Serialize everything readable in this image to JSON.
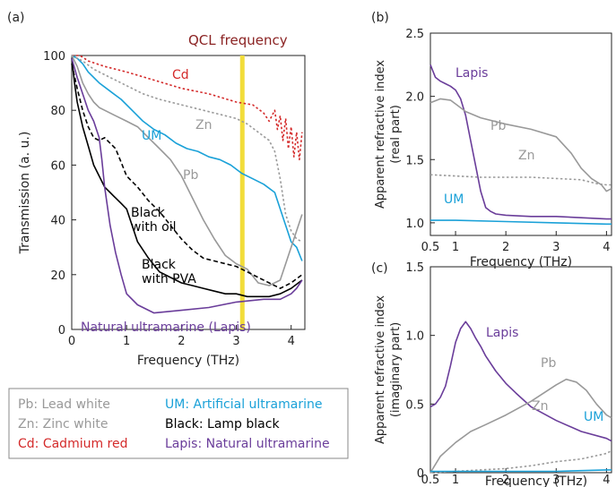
{
  "figure": {
    "panel_labels": [
      "(a)",
      "(b)",
      "(c)"
    ]
  },
  "legend_box": {
    "entries": [
      {
        "key": "Pb",
        "text": "Pb: Lead white",
        "color": "#999999"
      },
      {
        "key": "UM",
        "text": "UM: Artificial ultramarine",
        "color": "#1aa1d8"
      },
      {
        "key": "Zn",
        "text": "Zn: Zinc white",
        "color": "#999999"
      },
      {
        "key": "Black",
        "text": "Black: Lamp black",
        "color": "#000000"
      },
      {
        "key": "Cd",
        "text": "Cd: Cadmium red",
        "color": "#d42a2a"
      },
      {
        "key": "Lapis",
        "text": "Lapis: Natural ultramarine",
        "color": "#6a3d9a"
      }
    ]
  },
  "colors": {
    "Cd": "#d42a2a",
    "UM": "#1aa1d8",
    "Zn": "#9a9a9a",
    "Pb": "#999999",
    "Black": "#000000",
    "Lapis": "#6a3d9a",
    "QCL": "#f2dd3a",
    "QCL_label": "#8b2323"
  },
  "chart_data": [
    {
      "panel": "(a)",
      "type": "line",
      "title": "",
      "xlabel": "Frequency (THz)",
      "ylabel": "Transmission (a. u.)",
      "xlim": [
        0,
        4.25
      ],
      "ylim": [
        0,
        100
      ],
      "xticks": [
        "0",
        "1",
        "2",
        "3",
        "4"
      ],
      "yticks": [
        "0",
        "20",
        "40",
        "60",
        "80",
        "100"
      ],
      "annotation": {
        "text": "QCL frequency",
        "x": 3.11
      },
      "series": [
        {
          "name": "Cd",
          "label": "Cd",
          "style": "dotted",
          "x": [
            0.0,
            0.15,
            0.3,
            0.6,
            1.0,
            1.5,
            2.0,
            2.5,
            3.0,
            3.3,
            3.5,
            3.6,
            3.7,
            3.75,
            3.8,
            3.85,
            3.9,
            3.95,
            4.0,
            4.05,
            4.1,
            4.15,
            4.2
          ],
          "y": [
            100,
            100,
            98,
            96,
            94,
            91,
            88,
            86,
            83,
            82,
            79,
            76,
            80,
            73,
            78,
            69,
            77,
            66,
            74,
            63,
            72,
            62,
            72
          ]
        },
        {
          "name": "UM",
          "label": "UM",
          "style": "solid",
          "x": [
            0.0,
            0.1,
            0.2,
            0.3,
            0.5,
            0.7,
            0.9,
            1.1,
            1.3,
            1.5,
            1.7,
            1.9,
            2.1,
            2.3,
            2.5,
            2.7,
            2.9,
            3.1,
            3.3,
            3.5,
            3.7,
            3.8,
            3.9,
            4.0,
            4.1,
            4.2
          ],
          "y": [
            100,
            99,
            97,
            94,
            90,
            87,
            84,
            80,
            76,
            73,
            71,
            68,
            66,
            65,
            63,
            62,
            60,
            57,
            55,
            53,
            50,
            44,
            38,
            32,
            30,
            25
          ]
        },
        {
          "name": "Zn",
          "label": "Zn",
          "style": "dotted",
          "x": [
            0.0,
            0.2,
            0.4,
            0.7,
            1.0,
            1.3,
            1.6,
            2.0,
            2.4,
            2.8,
            3.0,
            3.2,
            3.4,
            3.6,
            3.7,
            3.8,
            3.9,
            4.0,
            4.1,
            4.2
          ],
          "y": [
            100,
            98,
            95,
            92,
            89,
            86,
            84,
            82,
            80,
            78,
            77,
            75,
            72,
            69,
            65,
            55,
            42,
            36,
            33,
            32
          ]
        },
        {
          "name": "Pb",
          "label": "Pb",
          "style": "solid",
          "x": [
            0.0,
            0.1,
            0.2,
            0.3,
            0.4,
            0.5,
            0.6,
            0.8,
            1.0,
            1.2,
            1.4,
            1.6,
            1.8,
            2.0,
            2.2,
            2.4,
            2.6,
            2.8,
            3.0,
            3.2,
            3.4,
            3.6,
            3.8,
            3.9,
            4.0,
            4.1,
            4.2
          ],
          "y": [
            100,
            96,
            90,
            86,
            83,
            81,
            80,
            78,
            76,
            74,
            70,
            66,
            62,
            56,
            48,
            40,
            33,
            27,
            24,
            22,
            17,
            16,
            18,
            24,
            30,
            36,
            42
          ]
        },
        {
          "name": "Black with oil",
          "label": "Black with oil",
          "style": "dashed",
          "x": [
            0.0,
            0.1,
            0.2,
            0.3,
            0.4,
            0.5,
            0.6,
            0.7,
            0.8,
            0.9,
            1.0,
            1.2,
            1.4,
            1.6,
            1.8,
            2.0,
            2.2,
            2.4,
            2.6,
            2.8,
            3.0,
            3.2,
            3.4,
            3.6,
            3.8,
            4.0,
            4.2
          ],
          "y": [
            97,
            88,
            80,
            74,
            70,
            69,
            70,
            68,
            66,
            61,
            56,
            52,
            47,
            43,
            38,
            33,
            29,
            26,
            25,
            24,
            23,
            21,
            19,
            17,
            15,
            17,
            20
          ]
        },
        {
          "name": "Black with PVA",
          "label": "Black with PVA",
          "style": "solid",
          "x": [
            0.0,
            0.05,
            0.1,
            0.2,
            0.3,
            0.4,
            0.5,
            0.6,
            0.7,
            0.8,
            0.9,
            1.0,
            1.1,
            1.2,
            1.4,
            1.6,
            1.8,
            2.0,
            2.2,
            2.4,
            2.6,
            2.8,
            3.0,
            3.2,
            3.4,
            3.6,
            3.8,
            4.0,
            4.2
          ],
          "y": [
            99,
            90,
            83,
            74,
            67,
            60,
            56,
            52,
            50,
            48,
            46,
            44,
            38,
            32,
            26,
            21,
            19,
            17,
            16,
            15,
            14,
            13,
            13,
            12,
            12,
            12,
            13,
            15,
            18
          ]
        },
        {
          "name": "Natural ultramarine (Lapis)",
          "label": "Natural ultramarine (Lapis)",
          "style": "solid",
          "x": [
            0.0,
            0.1,
            0.2,
            0.3,
            0.4,
            0.5,
            0.55,
            0.6,
            0.7,
            0.8,
            0.9,
            1.0,
            1.2,
            1.5,
            2.0,
            2.5,
            3.0,
            3.5,
            3.8,
            4.0,
            4.1,
            4.2
          ],
          "y": [
            99,
            92,
            86,
            80,
            76,
            70,
            62,
            52,
            38,
            28,
            20,
            13,
            9,
            6,
            7,
            8,
            10,
            11,
            11,
            13,
            15,
            18
          ]
        }
      ]
    },
    {
      "panel": "(b)",
      "type": "line",
      "title": "",
      "xlabel": "Frequency (THz)",
      "ylabel": "Apparent refractive index (real part)",
      "xlim": [
        0.5,
        4.1
      ],
      "ylim": [
        0.9,
        2.5
      ],
      "xticks": [
        "0.5",
        "1",
        "2",
        "3",
        "4"
      ],
      "yticks": [
        "1.0",
        "1.5",
        "2.0",
        "2.5"
      ],
      "series": [
        {
          "name": "Lapis",
          "label": "Lapis",
          "style": "solid",
          "x": [
            0.5,
            0.55,
            0.6,
            0.7,
            0.8,
            0.9,
            1.0,
            1.1,
            1.2,
            1.3,
            1.4,
            1.5,
            1.6,
            1.7,
            1.8,
            2.0,
            2.5,
            3.0,
            3.5,
            4.0,
            4.1
          ],
          "y": [
            2.25,
            2.2,
            2.15,
            2.12,
            2.1,
            2.08,
            2.05,
            1.98,
            1.85,
            1.65,
            1.45,
            1.25,
            1.12,
            1.09,
            1.07,
            1.06,
            1.05,
            1.05,
            1.04,
            1.03,
            1.03
          ]
        },
        {
          "name": "Pb",
          "label": "Pb",
          "style": "solid",
          "x": [
            0.5,
            0.7,
            0.9,
            1.0,
            1.2,
            1.5,
            2.0,
            2.5,
            3.0,
            3.3,
            3.5,
            3.7,
            3.9,
            4.0,
            4.1
          ],
          "y": [
            1.95,
            1.98,
            1.97,
            1.94,
            1.88,
            1.83,
            1.78,
            1.74,
            1.68,
            1.55,
            1.43,
            1.35,
            1.3,
            1.25,
            1.27
          ]
        },
        {
          "name": "Zn",
          "label": "Zn",
          "style": "dotted",
          "x": [
            0.5,
            1.0,
            1.5,
            2.0,
            2.5,
            3.0,
            3.5,
            3.8,
            4.0,
            4.1
          ],
          "y": [
            1.38,
            1.37,
            1.36,
            1.36,
            1.36,
            1.35,
            1.34,
            1.31,
            1.3,
            1.3
          ]
        },
        {
          "name": "UM",
          "label": "UM",
          "style": "solid",
          "x": [
            0.5,
            1.0,
            2.0,
            3.0,
            4.0,
            4.1
          ],
          "y": [
            1.02,
            1.02,
            1.01,
            1.0,
            0.99,
            0.99
          ]
        }
      ]
    },
    {
      "panel": "(c)",
      "type": "line",
      "title": "",
      "xlabel": "Frequency (THz)",
      "ylabel": "Apparent refractive index (imaginary part)",
      "xlim": [
        0.5,
        4.1
      ],
      "ylim": [
        0,
        1.5
      ],
      "xticks": [
        "0.5",
        "1",
        "2",
        "3",
        "4"
      ],
      "yticks": [
        "0",
        "0.5",
        "1.0",
        "1.5"
      ],
      "series": [
        {
          "name": "Lapis",
          "label": "Lapis",
          "style": "solid",
          "x": [
            0.5,
            0.6,
            0.7,
            0.8,
            0.9,
            1.0,
            1.1,
            1.2,
            1.3,
            1.4,
            1.5,
            1.6,
            1.8,
            2.0,
            2.2,
            2.5,
            3.0,
            3.5,
            4.0,
            4.1
          ],
          "y": [
            0.48,
            0.5,
            0.55,
            0.63,
            0.78,
            0.95,
            1.05,
            1.1,
            1.05,
            0.98,
            0.92,
            0.85,
            0.74,
            0.65,
            0.58,
            0.48,
            0.38,
            0.3,
            0.25,
            0.23
          ]
        },
        {
          "name": "Pb",
          "label": "Pb",
          "style": "solid",
          "x": [
            0.5,
            0.7,
            1.0,
            1.3,
            1.6,
            2.0,
            2.5,
            3.0,
            3.2,
            3.4,
            3.6,
            3.8,
            4.0,
            4.1
          ],
          "y": [
            0.0,
            0.12,
            0.22,
            0.3,
            0.35,
            0.42,
            0.52,
            0.64,
            0.68,
            0.66,
            0.6,
            0.5,
            0.42,
            0.4
          ]
        },
        {
          "name": "Zn",
          "label": "Zn",
          "style": "dotted",
          "x": [
            0.5,
            1.0,
            1.5,
            2.0,
            2.5,
            3.0,
            3.5,
            4.0,
            4.1
          ],
          "y": [
            0.0,
            0.01,
            0.02,
            0.03,
            0.05,
            0.08,
            0.1,
            0.14,
            0.16
          ]
        },
        {
          "name": "UM",
          "label": "UM",
          "style": "solid",
          "x": [
            0.5,
            1.0,
            2.0,
            3.0,
            4.0,
            4.1
          ],
          "y": [
            0.01,
            0.01,
            0.01,
            0.01,
            0.02,
            0.02
          ]
        }
      ]
    }
  ]
}
